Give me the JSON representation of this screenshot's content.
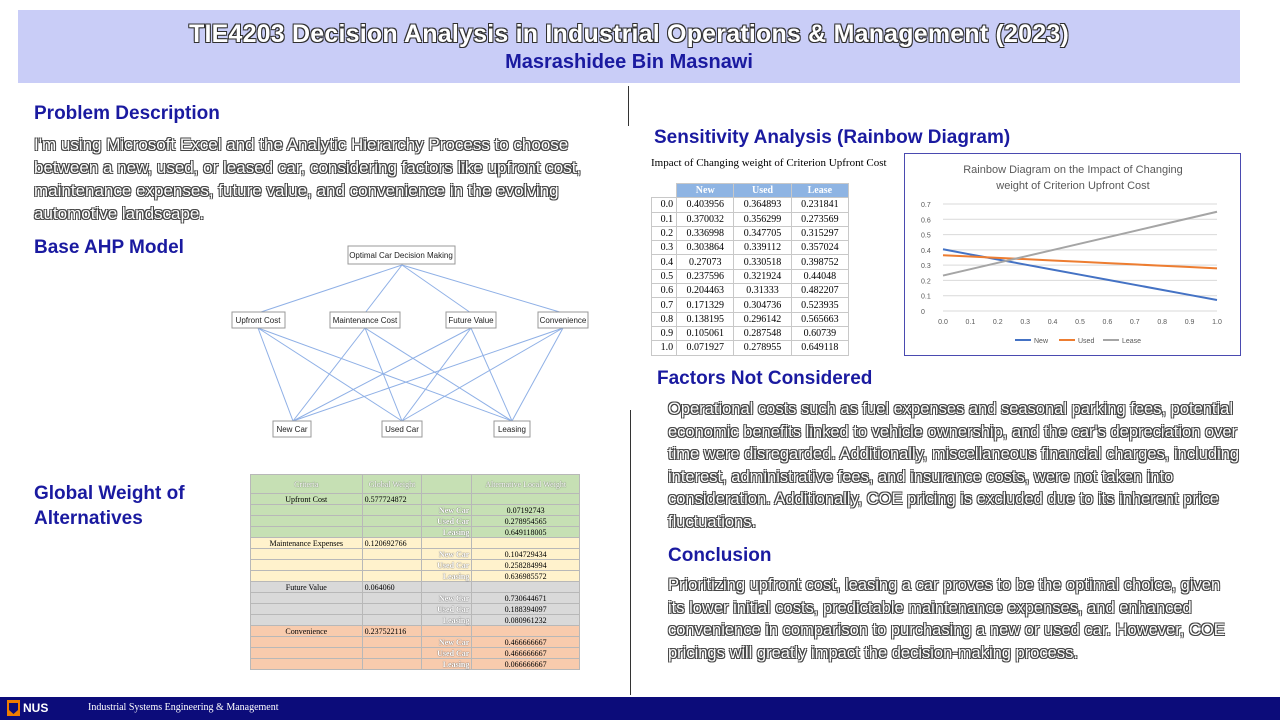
{
  "header": {
    "title": "TIE4203 Decision Analysis in Industrial Operations & Management (2023)",
    "author": "Masrashidee Bin Masnawi"
  },
  "problem": {
    "heading": "Problem Description",
    "text": "I'm using Microsoft Excel and the Analytic Hierarchy Process to choose between a new, used, or leased car, considering factors like upfront cost, maintenance expenses, future value, and convenience in the evolving automotive landscape."
  },
  "ahp": {
    "heading": "Base AHP Model",
    "goal": "Optimal Car Decision Making",
    "criteria": [
      "Upfront Cost",
      "Maintenance Cost",
      "Future Value",
      "Convenience"
    ],
    "alternatives": [
      "New Car",
      "Used Car",
      "Leasing"
    ]
  },
  "global_weight": {
    "heading_line1": "Global Weight of",
    "heading_line2": "Alternatives",
    "col1": "Criteria",
    "col2": "Global Weight",
    "col4": "Alternative Local Weight",
    "groups": [
      {
        "criterion": "Upfront Cost",
        "weight": "0.577724872",
        "color": "#c6e0b4",
        "rows": [
          [
            "New Car",
            "0.07192743"
          ],
          [
            "Used Car",
            "0.278954565"
          ],
          [
            "Leasing",
            "0.649118005"
          ]
        ]
      },
      {
        "criterion": "Maintenance Expenses",
        "weight": "0.120692766",
        "color": "#fff2cc",
        "rows": [
          [
            "New Car",
            "0.104729434"
          ],
          [
            "Used Car",
            "0.258284994"
          ],
          [
            "Leasing",
            "0.636985572"
          ]
        ]
      },
      {
        "criterion": "Future Value",
        "weight": "0.064060",
        "color": "#d9d9d9",
        "rows": [
          [
            "New Car",
            "0.730644671"
          ],
          [
            "Used Car",
            "0.188394097"
          ],
          [
            "Leasing",
            "0.080961232"
          ]
        ]
      },
      {
        "criterion": "Convenience",
        "weight": "0.237522116",
        "color": "#f8cbad",
        "rows": [
          [
            "New Car",
            "0.466666667"
          ],
          [
            "Used Car",
            "0.466666667"
          ],
          [
            "Leasing",
            "0.066666667"
          ]
        ]
      }
    ]
  },
  "sensitivity": {
    "heading": "Sensitivity Analysis (Rainbow Diagram)",
    "table_caption": "Impact of Changing weight of Criterion Upfront Cost",
    "columns": [
      "New",
      "Used",
      "Lease"
    ],
    "rows": [
      [
        "0.0",
        "0.403956",
        "0.364893",
        "0.231841"
      ],
      [
        "0.1",
        "0.370032",
        "0.356299",
        "0.273569"
      ],
      [
        "0.2",
        "0.336998",
        "0.347705",
        "0.315297"
      ],
      [
        "0.3",
        "0.303864",
        "0.339112",
        "0.357024"
      ],
      [
        "0.4",
        "0.27073",
        "0.330518",
        "0.398752"
      ],
      [
        "0.5",
        "0.237596",
        "0.321924",
        "0.44048"
      ],
      [
        "0.6",
        "0.204463",
        "0.31333",
        "0.482207"
      ],
      [
        "0.7",
        "0.171329",
        "0.304736",
        "0.523935"
      ],
      [
        "0.8",
        "0.138195",
        "0.296142",
        "0.565663"
      ],
      [
        "0.9",
        "0.105061",
        "0.287548",
        "0.60739"
      ],
      [
        "1.0",
        "0.071927",
        "0.278955",
        "0.649118"
      ]
    ]
  },
  "chart_data": {
    "type": "line",
    "title": "Rainbow Diagram on the Impact of Changing weight of Criterion Upfront Cost",
    "title_line1": "Rainbow Diagram on the Impact of Changing",
    "title_line2": "weight of Criterion Upfront Cost",
    "x": [
      "0.0",
      "0.1",
      "0.2",
      "0.3",
      "0.4",
      "0.5",
      "0.6",
      "0.7",
      "0.8",
      "0.9",
      "1.0"
    ],
    "ylim": [
      0,
      0.7
    ],
    "yticks": [
      "0",
      "0.1",
      "0.2",
      "0.3",
      "0.4",
      "0.5",
      "0.6",
      "0.7"
    ],
    "grid": true,
    "legend": "bottom",
    "series": [
      {
        "name": "New",
        "color": "#4472c4",
        "values": [
          0.403956,
          0.370032,
          0.336998,
          0.303864,
          0.27073,
          0.237596,
          0.204463,
          0.171329,
          0.138195,
          0.105061,
          0.071927
        ]
      },
      {
        "name": "Used",
        "color": "#ed7d31",
        "values": [
          0.364893,
          0.356299,
          0.347705,
          0.339112,
          0.330518,
          0.321924,
          0.31333,
          0.304736,
          0.296142,
          0.287548,
          0.278955
        ]
      },
      {
        "name": "Lease",
        "color": "#a5a5a5",
        "values": [
          0.231841,
          0.273569,
          0.315297,
          0.357024,
          0.398752,
          0.44048,
          0.482207,
          0.523935,
          0.565663,
          0.60739,
          0.649118
        ]
      }
    ]
  },
  "factors": {
    "heading": "Factors Not Considered",
    "text": "Operational costs such as fuel expenses and seasonal parking fees, potential economic benefits linked to vehicle ownership, and the car's depreciation over time were disregarded. Additionally, miscellaneous financial charges, including interest, administrative fees, and insurance costs, were not taken into consideration. Additionally, COE pricing is excluded due to its inherent price fluctuations."
  },
  "conclusion": {
    "heading": "Conclusion",
    "text": "Prioritizing upfront cost, leasing a car proves to be the optimal choice, given its lower initial costs, predictable maintenance expenses, and enhanced convenience in comparison to purchasing a new or used car. However, COE pricings will greatly impact the decision-making process."
  },
  "footer": {
    "logo": "NUS",
    "org": "Industrial Systems Engineering & Management"
  }
}
